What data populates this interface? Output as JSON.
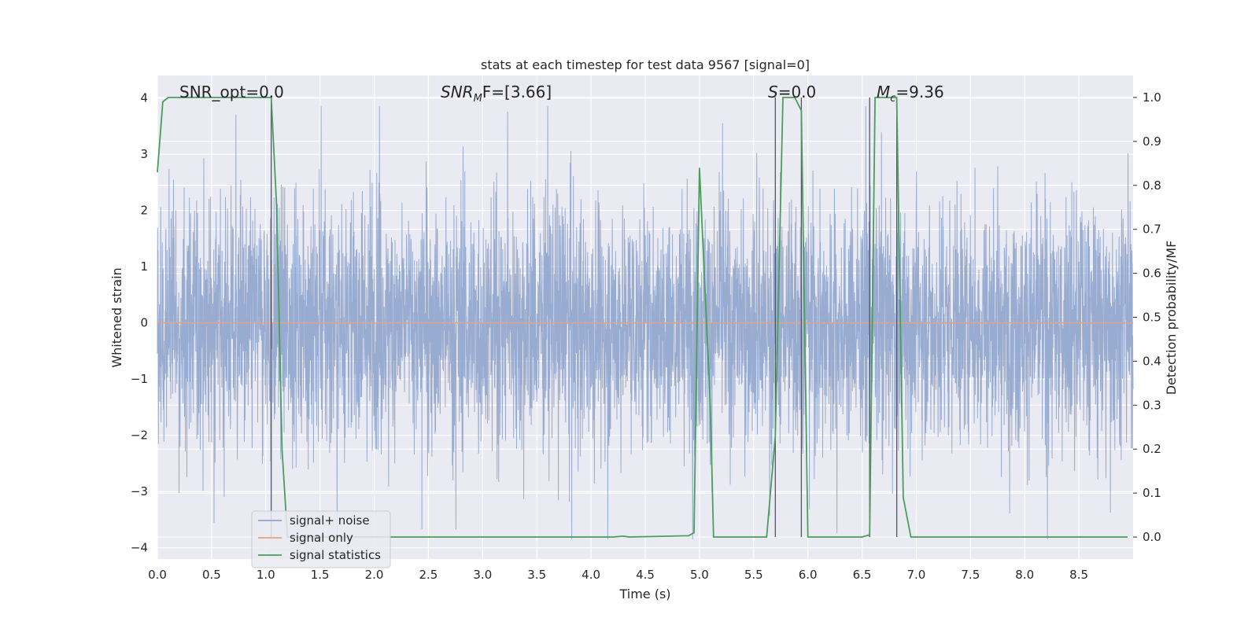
{
  "chart_data": {
    "type": "line",
    "title": "stats at each timestep for test data 9567 [signal=0]",
    "xlabel": "Time (s)",
    "ylabel": "Whitened strain",
    "ylabel_right": "Detection probability/MF",
    "xlim": [
      0.0,
      9.0
    ],
    "ylim": [
      -4.2,
      4.4
    ],
    "ylim_right": [
      -0.05,
      1.05
    ],
    "x_ticks": [
      "0.0",
      "0.5",
      "1.0",
      "1.5",
      "2.0",
      "2.5",
      "3.0",
      "3.5",
      "4.0",
      "4.5",
      "5.0",
      "5.5",
      "6.0",
      "6.5",
      "7.0",
      "7.5",
      "8.0",
      "8.5"
    ],
    "y_ticks": [
      "4",
      "3",
      "2",
      "1",
      "0",
      "−1",
      "−2",
      "−3",
      "−4"
    ],
    "y_ticks_right": [
      "1.0",
      "0.9",
      "0.8",
      "0.7",
      "0.6",
      "0.5",
      "0.4",
      "0.3",
      "0.2",
      "0.1",
      "0.0"
    ],
    "grid": true,
    "legend_position": "lower-left",
    "annotations": {
      "snr_opt": "SNR_opt=0.0",
      "snr_mf_base": "SNR",
      "snr_mf_sub": "M",
      "snr_mf_rest": "F=[3.66]",
      "s_label": "S",
      "s_value": "=0.0",
      "mc_base": "M",
      "mc_sub": "c",
      "mc_value": "=9.36"
    },
    "series": [
      {
        "name": "signal+ noise",
        "color": "#8fa4cc",
        "description": "dense whitened noise, amplitude mostly within ±2, spikes up to about ±3.8",
        "amplitude_core": 1.6,
        "amplitude_peak": 3.85
      },
      {
        "name": "signal only",
        "color": "#e9a07f",
        "x": [
          0.0,
          9.0
        ],
        "y": [
          0.0,
          0.0
        ]
      },
      {
        "name": "signal statistics",
        "color": "#4a9e5c",
        "axis": "right",
        "x": [
          0.0,
          0.05,
          0.1,
          0.5,
          1.0,
          1.05,
          1.1,
          1.15,
          1.2,
          4.2,
          4.3,
          4.35,
          4.9,
          4.95,
          5.0,
          5.1,
          5.13,
          5.62,
          5.7,
          5.77,
          5.8,
          5.88,
          5.94,
          6.0,
          6.1,
          6.5,
          6.57,
          6.62,
          6.65,
          6.78,
          6.82,
          6.88,
          6.95,
          7.4,
          8.95
        ],
        "y": [
          0.83,
          0.99,
          1.0,
          1.0,
          1.0,
          1.0,
          0.75,
          0.2,
          0.0,
          0.0,
          0.002,
          0.0,
          0.003,
          0.01,
          0.84,
          0.3,
          0.0,
          0.0,
          0.23,
          1.0,
          1.0,
          1.0,
          0.97,
          0.0,
          0.0,
          0.0,
          0.005,
          1.0,
          1.0,
          1.0,
          1.0,
          0.09,
          0.0,
          0.0,
          0.0
        ]
      }
    ],
    "vertical_markers_x": [
      1.05,
      5.7,
      5.94,
      6.57,
      6.82
    ]
  }
}
